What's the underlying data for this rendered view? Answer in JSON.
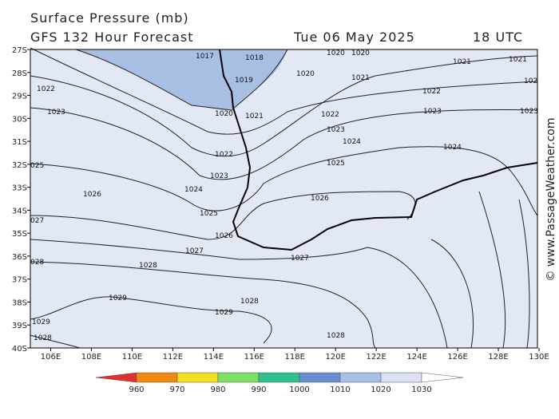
{
  "header": {
    "title": "Surface Pressure (mb)",
    "model": "GFS 132 Hour Forecast",
    "date": "Tue 06 May 2025",
    "time": "18 UTC"
  },
  "map": {
    "latitudes": [
      "27S",
      "28S",
      "29S",
      "30S",
      "31S",
      "32S",
      "33S",
      "34S",
      "35S",
      "36S",
      "37S",
      "38S",
      "39S",
      "40S"
    ],
    "longitudes": [
      "106E",
      "108E",
      "110E",
      "112E",
      "114E",
      "116E",
      "118E",
      "120E",
      "122E",
      "124E",
      "126E",
      "128E",
      "130E"
    ],
    "isobar_labels": [
      "1017",
      "1018",
      "1020",
      "1020",
      "1021",
      "1021",
      "1020",
      "1019",
      "1021",
      "1022",
      "102",
      "1022",
      "1023",
      "1020",
      "1021",
      "1022",
      "1023",
      "1023",
      "1023",
      "1024",
      "1024",
      "1022",
      "1025",
      "1023",
      "025",
      "1024",
      "1026",
      "1026",
      "1025",
      "027",
      "1026",
      "1027",
      "028",
      "1028",
      "1027",
      "1028",
      "1029",
      "1029",
      "1029",
      "1028",
      "1028"
    ]
  },
  "legend": {
    "labels": [
      "960",
      "970",
      "980",
      "990",
      "1000",
      "1010",
      "1020",
      "1030"
    ]
  },
  "watermark": "© www.PassageWeather.com"
}
